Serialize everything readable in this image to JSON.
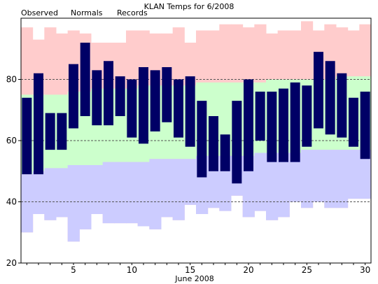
{
  "chart_data": {
    "type": "bar",
    "title": "KLAN Temps for 6/2008",
    "xlabel": "June 2008",
    "ylabel": "",
    "ylim": [
      20,
      100
    ],
    "xlim": [
      0.5,
      30.5
    ],
    "yticks": [
      20,
      40,
      60,
      80
    ],
    "xticks": [
      5,
      10,
      15,
      20,
      25,
      30
    ],
    "gridlines_y": [
      40,
      60,
      80
    ],
    "legend": [
      {
        "name": "Observed",
        "color": "#000066"
      },
      {
        "name": "Normals",
        "color": "#006600"
      },
      {
        "name": "Records",
        "color": "#ff8fb2"
      }
    ],
    "legend_position": "top-left",
    "days": [
      1,
      2,
      3,
      4,
      5,
      6,
      7,
      8,
      9,
      10,
      11,
      12,
      13,
      14,
      15,
      16,
      17,
      18,
      19,
      20,
      21,
      22,
      23,
      24,
      25,
      26,
      27,
      28,
      29,
      30
    ],
    "records": {
      "high": [
        97,
        93,
        97,
        95,
        96,
        95,
        92,
        92,
        92,
        96,
        96,
        95,
        95,
        97,
        92,
        96,
        96,
        98,
        98,
        97,
        98,
        95,
        96,
        96,
        99,
        96,
        98,
        97,
        96,
        98
      ],
      "low": [
        30,
        36,
        34,
        35,
        27,
        31,
        36,
        33,
        33,
        33,
        32,
        31,
        35,
        34,
        39,
        36,
        38,
        37,
        42,
        35,
        37,
        34,
        35,
        40,
        38,
        40,
        38,
        38,
        41,
        41
      ]
    },
    "normals": {
      "high": [
        75,
        75,
        75,
        75,
        76,
        76,
        77,
        77,
        77,
        77,
        78,
        78,
        78,
        78,
        78,
        79,
        79,
        79,
        79,
        79,
        79,
        80,
        80,
        80,
        80,
        80,
        80,
        81,
        81,
        81
      ],
      "low": [
        49,
        50,
        51,
        51,
        52,
        52,
        52,
        53,
        53,
        53,
        53,
        54,
        54,
        54,
        54,
        55,
        55,
        55,
        55,
        55,
        56,
        56,
        56,
        56,
        57,
        57,
        57,
        57,
        57,
        57
      ]
    },
    "observed": {
      "high": [
        74,
        82,
        69,
        69,
        85,
        92,
        83,
        86,
        81,
        80,
        84,
        83,
        84,
        80,
        81,
        73,
        68,
        62,
        73,
        80,
        76,
        76,
        77,
        79,
        78,
        89,
        86,
        82,
        74,
        76
      ],
      "low": [
        49,
        49,
        57,
        57,
        64,
        68,
        65,
        65,
        68,
        61,
        59,
        63,
        66,
        61,
        58,
        48,
        50,
        50,
        46,
        50,
        60,
        53,
        53,
        53,
        58,
        64,
        62,
        61,
        58,
        54
      ]
    },
    "colors": {
      "records": "#ffcccc",
      "normals": "#ccffcc",
      "normals_low_band": "#ccccff",
      "observed": "#000066",
      "grid": "#555555"
    }
  }
}
